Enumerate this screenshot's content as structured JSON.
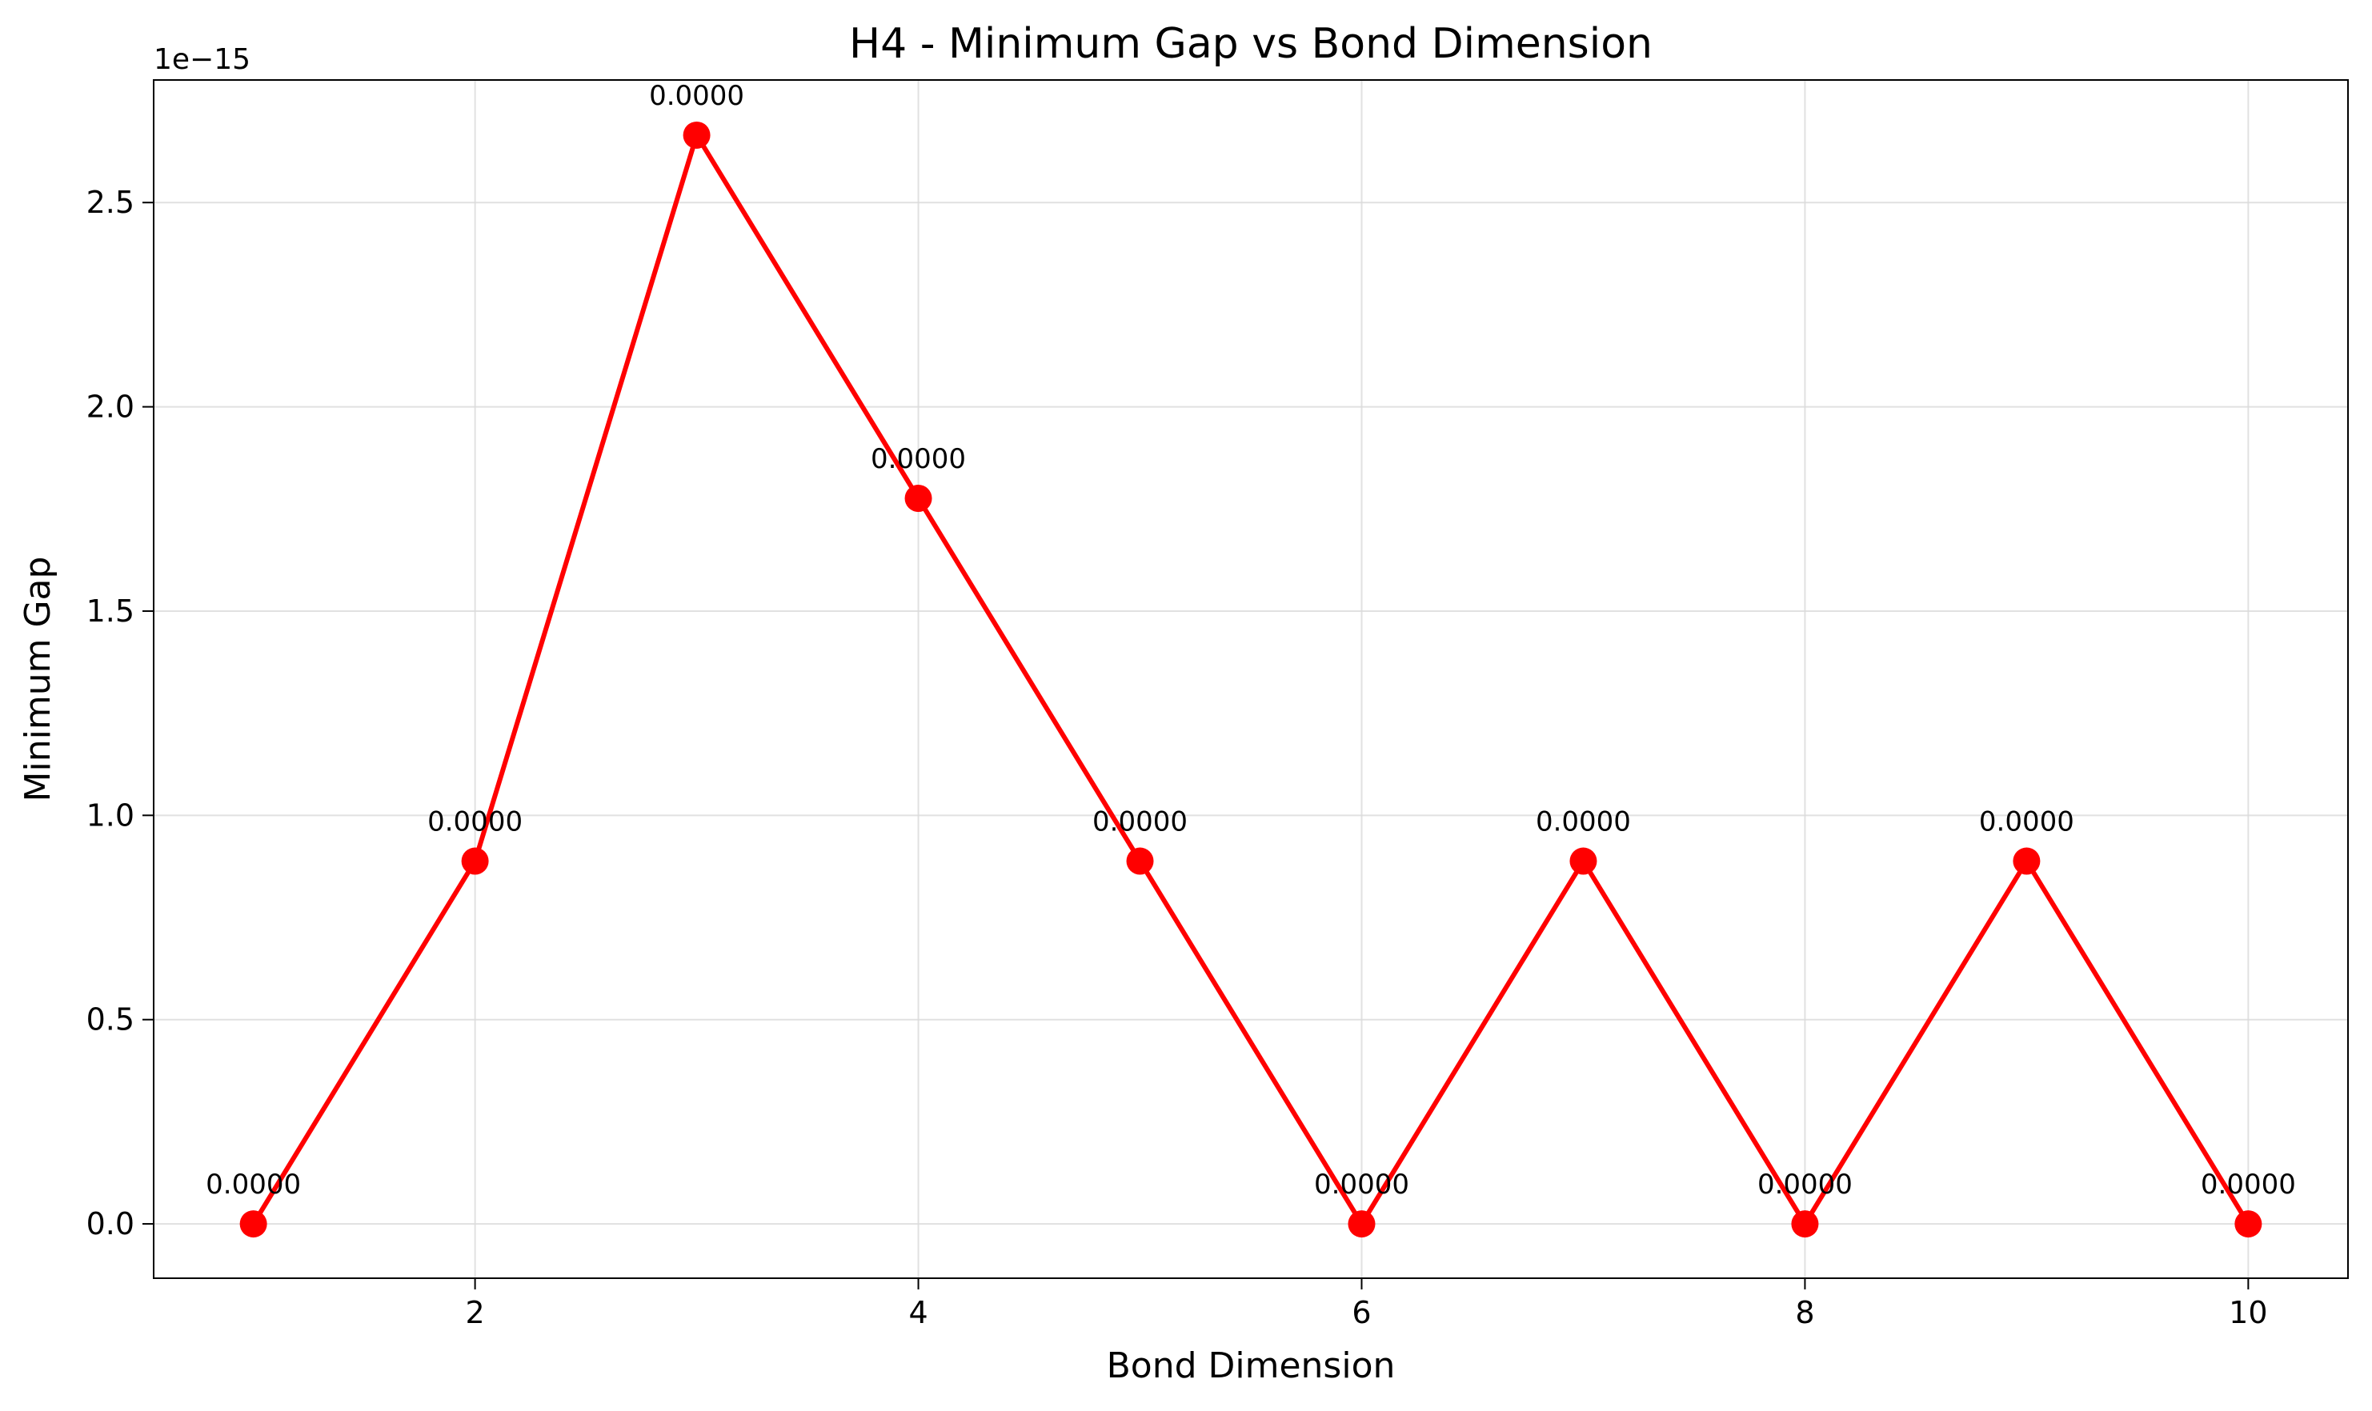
{
  "chart_data": {
    "type": "line",
    "title": "H4 - Minimum Gap vs Bond Dimension",
    "xlabel": "Bond Dimension",
    "ylabel": "Minimum Gap",
    "offset_label": "1e−15",
    "x": [
      1,
      2,
      3,
      4,
      5,
      6,
      7,
      8,
      9,
      10
    ],
    "series": [
      {
        "values": [
          0.0,
          8.88e-16,
          2.665e-15,
          1.776e-15,
          8.88e-16,
          0.0,
          8.88e-16,
          0.0,
          8.88e-16,
          0.0
        ],
        "data_labels": [
          "0.0000",
          "0.0000",
          "0.0000",
          "0.0000",
          "0.0000",
          "0.0000",
          "0.0000",
          "0.0000",
          "0.0000",
          "0.0000"
        ],
        "color": "#ff0000"
      }
    ],
    "xlim": [
      0.55,
      10.45
    ],
    "ylim": [
      -1.33e-16,
      2.8e-15
    ],
    "x_ticks": [
      2,
      4,
      6,
      8,
      10
    ],
    "x_tick_labels": [
      "2",
      "4",
      "6",
      "8",
      "10"
    ],
    "y_ticks": [
      0,
      5e-16,
      1e-15,
      1.5e-15,
      2e-15,
      2.5e-15
    ],
    "y_tick_labels": [
      "0.0",
      "0.5",
      "1.0",
      "1.5",
      "2.0",
      "2.5"
    ],
    "grid": true,
    "legend": "none"
  }
}
